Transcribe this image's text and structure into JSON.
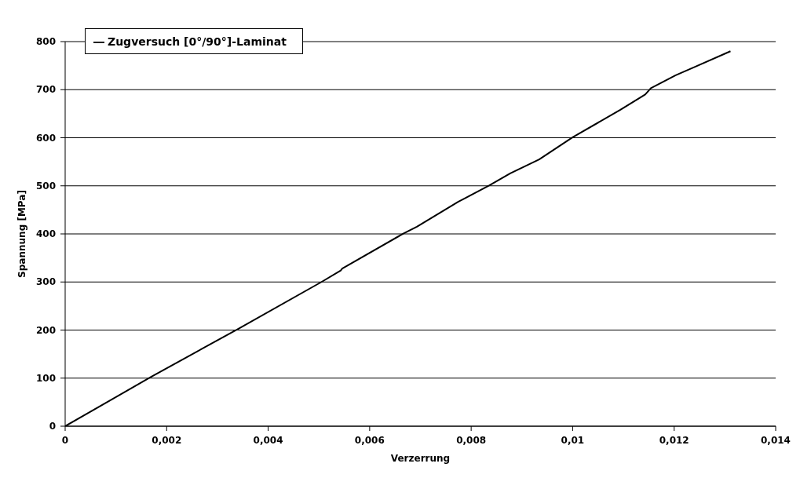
{
  "chart_data": {
    "type": "line",
    "xlabel": "Verzerrung",
    "ylabel": "Spannung [MPa]",
    "x": [
      0,
      0.0017,
      0.0034,
      0.00505,
      0.00543,
      0.00546,
      0.00667,
      0.00693,
      0.00775,
      0.00836,
      0.00877,
      0.00934,
      0.01,
      0.01094,
      0.01143,
      0.01154,
      0.01203,
      0.01242,
      0.01311
    ],
    "series": [
      {
        "name": "Zugversuch [0°/90°]-Laminat",
        "color": "#000000",
        "values": [
          0,
          103,
          202,
          300,
          324,
          328,
          401,
          415,
          467,
          501,
          526,
          555,
          601,
          658,
          690,
          703,
          730,
          748,
          780
        ]
      }
    ],
    "xlim": [
      0,
      0.014
    ],
    "xticks": [
      0,
      {
        "value": 0.002,
        "label": "0,002"
      },
      {
        "value": 0.004,
        "label": "0,004"
      },
      {
        "value": 0.006,
        "label": "0,006"
      },
      {
        "value": 0.008,
        "label": "0,008"
      },
      {
        "value": 0.01,
        "label": "0,01"
      },
      {
        "value": 0.012,
        "label": "0,012"
      },
      {
        "value": 0.014,
        "label": "0,014"
      }
    ],
    "ylim": [
      0,
      800
    ],
    "yticks": [
      0,
      100,
      200,
      300,
      400,
      500,
      600,
      700,
      800
    ],
    "grid": "y",
    "legend": "top left",
    "marker": "none",
    "line_style": "solid"
  }
}
